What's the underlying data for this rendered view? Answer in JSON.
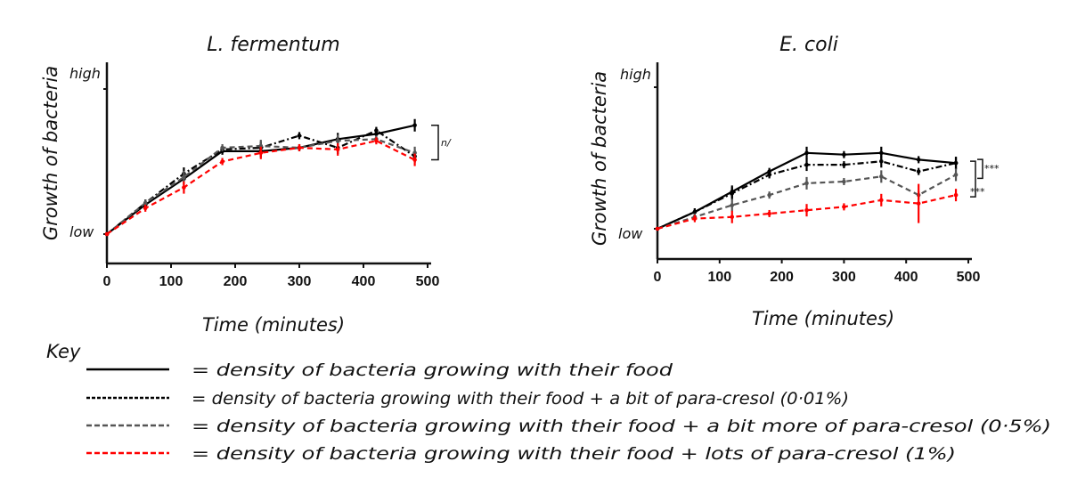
{
  "key_title": "Key",
  "chart_data": [
    {
      "type": "line",
      "title": "L. fermentum",
      "xlabel": "Time (minutes)",
      "ylabel": "Growth of bacteria",
      "xlim": [
        0,
        500
      ],
      "x_ticks": [
        "0",
        "100",
        "200",
        "300",
        "400",
        "500"
      ],
      "y_tick_labels": {
        "high": "high",
        "low": "low"
      },
      "ylim": [
        0,
        100
      ],
      "x": [
        0,
        60,
        120,
        180,
        240,
        300,
        360,
        420,
        480
      ],
      "series": [
        {
          "name": "= density of bacteria growing with their food",
          "color": "#000000",
          "style": "solid",
          "values": [
            16,
            33,
            48,
            64,
            64,
            66,
            71,
            74,
            79
          ]
        },
        {
          "name": "= density of bacteria growing with their food + a bit of para-cresol (0·01%)",
          "color": "#000000",
          "style": "dashdot",
          "values": [
            16,
            34,
            51,
            65,
            66,
            73,
            66,
            76,
            61
          ]
        },
        {
          "name": "= density of bacteria growing with their food + a bit more of para-cresol (0·5%)",
          "color": "#555555",
          "style": "dashed",
          "values": [
            16,
            34,
            49,
            66,
            67,
            66,
            70,
            71,
            63
          ]
        },
        {
          "name": "= density of bacteria growing with their food + lots of para-cresol (1%)",
          "color": "#ff0000",
          "style": "dashed",
          "values": [
            16,
            31,
            43,
            58,
            63,
            66,
            65,
            70,
            59
          ]
        }
      ],
      "annotations": [
        "n/"
      ]
    },
    {
      "type": "line",
      "title": "E. coli",
      "xlabel": "Time (minutes)",
      "ylabel": "Growth of bacteria",
      "xlim": [
        0,
        500
      ],
      "x_ticks": [
        "0",
        "100",
        "200",
        "300",
        "400",
        "500"
      ],
      "y_tick_labels": {
        "high": "high",
        "low": "low"
      },
      "ylim": [
        0,
        100
      ],
      "x": [
        0,
        60,
        120,
        180,
        240,
        300,
        360,
        420,
        480
      ],
      "series": [
        {
          "name": "= density of bacteria growing with their food",
          "color": "#000000",
          "style": "solid",
          "values": [
            16,
            26,
            38,
            50,
            61,
            60,
            61,
            57,
            55
          ]
        },
        {
          "name": "= density of bacteria growing with their food + a bit of para-cresol (0·01%)",
          "color": "#000000",
          "style": "dashdot",
          "values": [
            16,
            26,
            37,
            48,
            54,
            54,
            56,
            50,
            55
          ]
        },
        {
          "name": "= density of bacteria growing with their food + a bit more of para-cresol (0·5%)",
          "color": "#555555",
          "style": "dashed",
          "values": [
            16,
            23,
            30,
            36,
            43,
            44,
            47,
            36,
            48
          ]
        },
        {
          "name": "= density of bacteria growing with their food + lots of para-cresol (1%)",
          "color": "#ff0000",
          "style": "dashed",
          "values": [
            16,
            22,
            23,
            25,
            27,
            29,
            33,
            31,
            36
          ]
        }
      ],
      "annotations": [
        "***",
        "***"
      ]
    }
  ]
}
